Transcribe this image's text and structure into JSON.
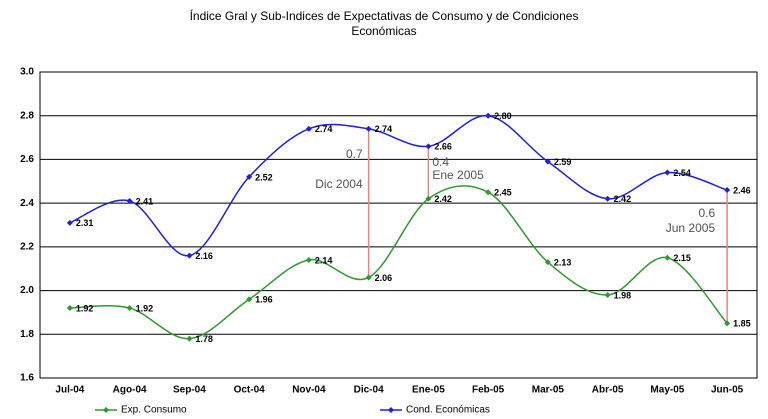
{
  "chart_data": {
    "type": "line",
    "title": "Índice Gral y Sub-Indices de Expectativas de Consumo y de Condiciones",
    "subtitle": "Económicas",
    "categories": [
      "Jul-04",
      "Ago-04",
      "Sep-04",
      "Oct-04",
      "Nov-04",
      "Dic-04",
      "Ene-05",
      "Feb-05",
      "Mar-05",
      "Abr-05",
      "May-05",
      "Jun-05"
    ],
    "series": [
      {
        "name": "Exp. Consumo",
        "color": "#2e9a2e",
        "values": [
          1.92,
          1.92,
          1.78,
          1.96,
          2.14,
          2.06,
          2.42,
          2.45,
          2.13,
          1.98,
          2.15,
          1.85
        ],
        "value_labels": [
          "1.92",
          "1.92",
          "1.78",
          "1.96",
          "2.14",
          "2.06",
          "2.42",
          "2.45",
          "2.13",
          "1.98",
          "2.15",
          "1.85"
        ]
      },
      {
        "name": "Cond. Económicas",
        "color": "#1f1fe0",
        "values": [
          2.31,
          2.41,
          2.16,
          2.52,
          2.74,
          2.74,
          2.66,
          2.8,
          2.59,
          2.42,
          2.54,
          2.46
        ],
        "value_labels": [
          "2.31",
          "2.41",
          "2.16",
          "2.52",
          "2.74",
          "2.74",
          "2.66",
          "2.80",
          "2.59",
          "2.42",
          "2.54",
          "2.46"
        ]
      }
    ],
    "ylim": [
      1.6,
      3.0
    ],
    "yticks": [
      1.6,
      1.8,
      {
        "value": 2,
        "label": "2.0"
      },
      2.2,
      2.4,
      2.6,
      2.8,
      {
        "value": 3,
        "label": "3.0"
      }
    ],
    "grid": true,
    "annotations": [
      {
        "value": 0.7,
        "label": "Dic 2004"
      },
      {
        "value": 0.4,
        "label": "Ene 2005"
      },
      {
        "value": 0.6,
        "label": "Jun 2005"
      }
    ],
    "annotation_color": "#f08080"
  }
}
